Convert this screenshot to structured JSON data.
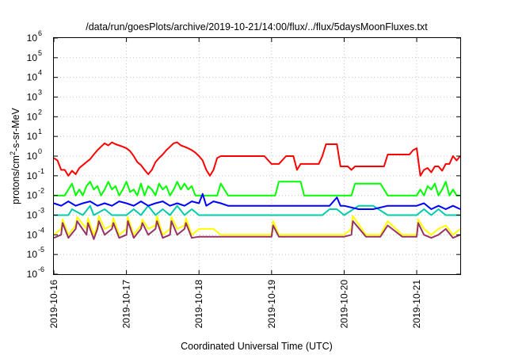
{
  "chart_data": {
    "type": "line",
    "title": "/data/run/goesPlots/archive/2019-10-21/14:00/flux/../flux/5daysMoonFluxes.txt",
    "xlabel": "Coordinated Universal Time (UTC)",
    "ylabel": {
      "prefix": "protons/cm",
      "superscript": "2",
      "suffix": "-s-sr-MeV"
    },
    "y_scale": "log",
    "ylim": [
      1e-06,
      1000000.0
    ],
    "y_ticks": [
      {
        "base": "10",
        "exp": "-6",
        "value": 1e-06
      },
      {
        "base": "10",
        "exp": "-5",
        "value": 1e-05
      },
      {
        "base": "10",
        "exp": "-4",
        "value": 0.0001
      },
      {
        "base": "10",
        "exp": "-3",
        "value": 0.001
      },
      {
        "base": "10",
        "exp": "-2",
        "value": 0.01
      },
      {
        "base": "10",
        "exp": "-1",
        "value": 0.1
      },
      {
        "base": "10",
        "exp": "0",
        "value": 1
      },
      {
        "base": "10",
        "exp": "1",
        "value": 10
      },
      {
        "base": "10",
        "exp": "2",
        "value": 100
      },
      {
        "base": "10",
        "exp": "3",
        "value": 1000
      },
      {
        "base": "10",
        "exp": "4",
        "value": 10000
      },
      {
        "base": "10",
        "exp": "5",
        "value": 100000
      },
      {
        "base": "10",
        "exp": "6",
        "value": 1000000
      }
    ],
    "x_tick_labels": [
      "2019-10-16",
      "2019-10-17",
      "2019-10-18",
      "2019-10-19",
      "2019-10-20",
      "2019-10-21"
    ],
    "x_ticks_days": [
      0,
      1,
      2,
      3,
      4,
      5
    ],
    "xlim_days": [
      0,
      5.6
    ],
    "grid": true,
    "series": [
      {
        "color": "#ff0000",
        "x": [
          0,
          0.05,
          0.1,
          0.15,
          0.2,
          0.25,
          0.3,
          0.35,
          0.4,
          0.45,
          0.5,
          0.55,
          0.6,
          0.65,
          0.7,
          0.75,
          0.8,
          0.85,
          0.9,
          0.95,
          1.0,
          1.05,
          1.1,
          1.15,
          1.2,
          1.25,
          1.3,
          1.35,
          1.4,
          1.45,
          1.5,
          1.55,
          1.6,
          1.65,
          1.7,
          1.75,
          1.8,
          1.85,
          1.9,
          1.95,
          2.0,
          2.05,
          2.1,
          2.15,
          2.2,
          2.25,
          2.3,
          2.35,
          2.4,
          2.45,
          2.5,
          2.6,
          2.7,
          2.8,
          2.9,
          3.0,
          3.1,
          3.2,
          3.3,
          3.35,
          3.4,
          3.45,
          3.5,
          3.6,
          3.65,
          3.7,
          3.75,
          3.8,
          3.85,
          3.9,
          3.95,
          4.0,
          4.05,
          4.1,
          4.15,
          4.2,
          4.3,
          4.4,
          4.5,
          4.55,
          4.6,
          4.65,
          4.7,
          4.8,
          4.9,
          4.95,
          5.0,
          5.05,
          5.1,
          5.15,
          5.2,
          5.25,
          5.3,
          5.35,
          5.4,
          5.45,
          5.5,
          5.55,
          5.6
        ],
        "y": [
          0.8,
          0.6,
          0.2,
          0.2,
          0.1,
          0.18,
          0.12,
          0.25,
          0.35,
          0.5,
          0.7,
          1.2,
          2.0,
          3.0,
          4.5,
          3.5,
          5.0,
          4.0,
          3.5,
          3.0,
          2.5,
          1.8,
          1.0,
          0.5,
          0.35,
          0.2,
          0.12,
          0.2,
          0.5,
          0.8,
          1.2,
          2.0,
          3.0,
          4.5,
          5.0,
          3.5,
          3.0,
          2.5,
          2.0,
          1.5,
          1.0,
          0.6,
          0.2,
          0.1,
          0.2,
          0.8,
          1.0,
          1.0,
          1.0,
          1.0,
          1.0,
          1.0,
          1.0,
          1.0,
          1.0,
          0.4,
          0.4,
          1.0,
          1.0,
          0.2,
          0.4,
          0.4,
          0.4,
          0.4,
          0.4,
          1.0,
          4.0,
          4.0,
          4.0,
          4.0,
          0.3,
          0.3,
          0.3,
          0.2,
          0.3,
          0.3,
          0.3,
          0.3,
          0.3,
          0.3,
          1.2,
          1.2,
          1.2,
          1.2,
          1.2,
          2.0,
          2.5,
          0.1,
          0.2,
          0.25,
          0.15,
          0.3,
          0.3,
          0.18,
          0.4,
          0.4,
          1.0,
          0.6,
          1.0
        ]
      },
      {
        "color": "#00ff00",
        "x": [
          0,
          0.1,
          0.15,
          0.2,
          0.25,
          0.3,
          0.35,
          0.4,
          0.45,
          0.5,
          0.55,
          0.6,
          0.65,
          0.7,
          0.75,
          0.8,
          0.85,
          0.9,
          0.95,
          1.0,
          1.05,
          1.1,
          1.15,
          1.2,
          1.25,
          1.3,
          1.35,
          1.4,
          1.45,
          1.5,
          1.55,
          1.6,
          1.65,
          1.7,
          1.75,
          1.8,
          1.85,
          1.9,
          1.95,
          2.0,
          2.05,
          2.1,
          2.15,
          2.2,
          2.25,
          2.3,
          2.35,
          2.4,
          2.5,
          2.6,
          2.7,
          2.8,
          2.9,
          3.0,
          3.05,
          3.1,
          3.2,
          3.3,
          3.4,
          3.45,
          3.5,
          3.6,
          3.7,
          3.8,
          3.9,
          4.0,
          4.1,
          4.15,
          4.2,
          4.3,
          4.4,
          4.5,
          4.6,
          4.7,
          4.8,
          4.9,
          5.0,
          5.05,
          5.1,
          5.15,
          5.2,
          5.25,
          5.3,
          5.35,
          5.4,
          5.45,
          5.5,
          5.55,
          5.6
        ],
        "y": [
          0.01,
          0.01,
          0.01,
          0.02,
          0.04,
          0.01,
          0.02,
          0.01,
          0.03,
          0.05,
          0.02,
          0.03,
          0.01,
          0.02,
          0.05,
          0.02,
          0.03,
          0.01,
          0.02,
          0.05,
          0.015,
          0.02,
          0.01,
          0.04,
          0.01,
          0.03,
          0.02,
          0.01,
          0.04,
          0.02,
          0.03,
          0.01,
          0.02,
          0.05,
          0.02,
          0.04,
          0.02,
          0.03,
          0.01,
          0.01,
          0.01,
          0.01,
          0.01,
          0.01,
          0.01,
          0.04,
          0.02,
          0.01,
          0.01,
          0.01,
          0.01,
          0.01,
          0.01,
          0.01,
          0.01,
          0.05,
          0.05,
          0.05,
          0.05,
          0.01,
          0.01,
          0.01,
          0.01,
          0.01,
          0.01,
          0.01,
          0.01,
          0.04,
          0.04,
          0.04,
          0.04,
          0.04,
          0.01,
          0.01,
          0.01,
          0.01,
          0.01,
          0.02,
          0.01,
          0.03,
          0.02,
          0.04,
          0.01,
          0.02,
          0.05,
          0.01,
          0.02,
          0.01,
          0.01
        ]
      },
      {
        "color": "#00ccaa",
        "x": [
          0,
          0.2,
          0.25,
          0.4,
          0.5,
          0.55,
          0.7,
          0.8,
          1.0,
          1.1,
          1.2,
          1.3,
          1.4,
          1.5,
          1.6,
          1.7,
          1.8,
          1.9,
          2.0,
          2.1,
          2.2,
          2.4,
          2.6,
          2.8,
          3.0,
          3.1,
          3.3,
          3.5,
          3.7,
          3.8,
          3.9,
          4.0,
          4.2,
          4.4,
          4.6,
          4.8,
          5.0,
          5.1,
          5.2,
          5.3,
          5.4,
          5.5,
          5.6
        ],
        "y": [
          0.001,
          0.001,
          0.002,
          0.001,
          0.003,
          0.001,
          0.002,
          0.001,
          0.001,
          0.002,
          0.001,
          0.003,
          0.001,
          0.002,
          0.001,
          0.003,
          0.001,
          0.002,
          0.001,
          0.001,
          0.001,
          0.001,
          0.001,
          0.001,
          0.001,
          0.001,
          0.001,
          0.001,
          0.001,
          0.002,
          0.002,
          0.001,
          0.003,
          0.003,
          0.001,
          0.001,
          0.001,
          0.002,
          0.001,
          0.002,
          0.001,
          0.001,
          0.001
        ]
      },
      {
        "color": "#0000ff",
        "x": [
          0,
          0.1,
          0.2,
          0.3,
          0.4,
          0.5,
          0.6,
          0.7,
          0.8,
          0.9,
          1.0,
          1.1,
          1.2,
          1.3,
          1.4,
          1.5,
          1.6,
          1.7,
          1.8,
          1.9,
          2.0,
          2.05,
          2.1,
          2.2,
          2.3,
          2.4,
          2.5,
          2.6,
          2.8,
          3.0,
          3.2,
          3.4,
          3.6,
          3.8,
          3.9,
          3.95,
          4.0,
          4.2,
          4.4,
          4.6,
          4.8,
          5.0,
          5.1,
          5.2,
          5.3,
          5.4,
          5.5,
          5.6
        ],
        "y": [
          0.004,
          0.003,
          0.005,
          0.003,
          0.004,
          0.005,
          0.003,
          0.004,
          0.003,
          0.005,
          0.004,
          0.003,
          0.005,
          0.003,
          0.004,
          0.005,
          0.003,
          0.004,
          0.003,
          0.005,
          0.004,
          0.012,
          0.003,
          0.005,
          0.004,
          0.003,
          0.003,
          0.003,
          0.003,
          0.003,
          0.003,
          0.003,
          0.003,
          0.003,
          0.008,
          0.003,
          0.003,
          0.002,
          0.002,
          0.003,
          0.003,
          0.003,
          0.004,
          0.002,
          0.003,
          0.002,
          0.003,
          0.002
        ]
      },
      {
        "color": "#ffff00",
        "x": [
          0,
          0.1,
          0.12,
          0.2,
          0.3,
          0.32,
          0.45,
          0.47,
          0.55,
          0.6,
          0.62,
          0.7,
          0.8,
          0.82,
          0.9,
          1.0,
          1.02,
          1.1,
          1.2,
          1.22,
          1.3,
          1.4,
          1.42,
          1.5,
          1.6,
          1.62,
          1.7,
          1.8,
          1.82,
          1.9,
          2.0,
          2.1,
          2.2,
          2.3,
          2.4,
          2.5,
          2.6,
          2.8,
          3.0,
          3.02,
          3.1,
          3.2,
          3.4,
          3.6,
          3.8,
          4.0,
          4.1,
          4.12,
          4.3,
          4.5,
          4.6,
          4.8,
          5.0,
          5.02,
          5.1,
          5.2,
          5.3,
          5.4,
          5.5,
          5.6
        ],
        "y": [
          0.0001,
          0.0002,
          0.0006,
          0.0001,
          0.0003,
          0.0008,
          0.0002,
          0.0007,
          0.0001,
          0.0003,
          0.0009,
          0.0002,
          0.0003,
          0.0007,
          0.0001,
          0.0002,
          0.0008,
          0.0001,
          0.0003,
          0.0006,
          0.0002,
          0.0003,
          0.0009,
          0.0001,
          0.0002,
          0.0008,
          0.0002,
          0.0003,
          0.0007,
          0.0001,
          0.0002,
          0.0002,
          0.0002,
          0.0001,
          0.0001,
          0.0001,
          0.0001,
          0.0001,
          0.0001,
          0.0005,
          0.0001,
          0.0001,
          0.0001,
          0.0001,
          0.0001,
          0.0001,
          0.0002,
          0.0009,
          0.0001,
          0.0001,
          0.0005,
          0.0001,
          0.0001,
          0.0006,
          0.0002,
          0.0001,
          0.0002,
          0.0003,
          0.0001,
          0.0002
        ]
      },
      {
        "color": "#993366",
        "x": [
          0,
          0.1,
          0.12,
          0.2,
          0.3,
          0.32,
          0.45,
          0.47,
          0.55,
          0.6,
          0.62,
          0.7,
          0.8,
          0.82,
          0.9,
          1.0,
          1.02,
          1.1,
          1.2,
          1.22,
          1.3,
          1.4,
          1.42,
          1.5,
          1.6,
          1.62,
          1.7,
          1.8,
          1.82,
          1.9,
          2.0,
          2.1,
          2.2,
          2.3,
          2.4,
          2.5,
          2.6,
          2.8,
          3.0,
          3.02,
          3.1,
          3.2,
          3.4,
          3.6,
          3.8,
          4.0,
          4.1,
          4.12,
          4.3,
          4.5,
          4.6,
          4.8,
          5.0,
          5.02,
          5.1,
          5.2,
          5.3,
          5.4,
          5.5,
          5.6
        ],
        "y": [
          7e-05,
          0.0001,
          0.0004,
          7e-05,
          0.0002,
          0.0005,
          0.0001,
          0.0004,
          6e-05,
          0.0002,
          0.0005,
          0.0001,
          0.0002,
          0.0004,
          7e-05,
          0.0001,
          0.0005,
          7e-05,
          0.0002,
          0.0004,
          0.0001,
          0.0002,
          0.0005,
          7e-05,
          0.0001,
          0.0005,
          0.0001,
          0.0002,
          0.0004,
          7e-05,
          8e-05,
          8e-05,
          8e-05,
          8e-05,
          8e-05,
          8e-05,
          8e-05,
          8e-05,
          8e-05,
          0.0003,
          8e-05,
          8e-05,
          8e-05,
          8e-05,
          8e-05,
          8e-05,
          0.0001,
          0.0005,
          8e-05,
          8e-05,
          0.0003,
          8e-05,
          8e-05,
          0.0004,
          0.0001,
          7e-05,
          0.0001,
          0.0002,
          7e-05,
          0.0001
        ]
      }
    ]
  }
}
